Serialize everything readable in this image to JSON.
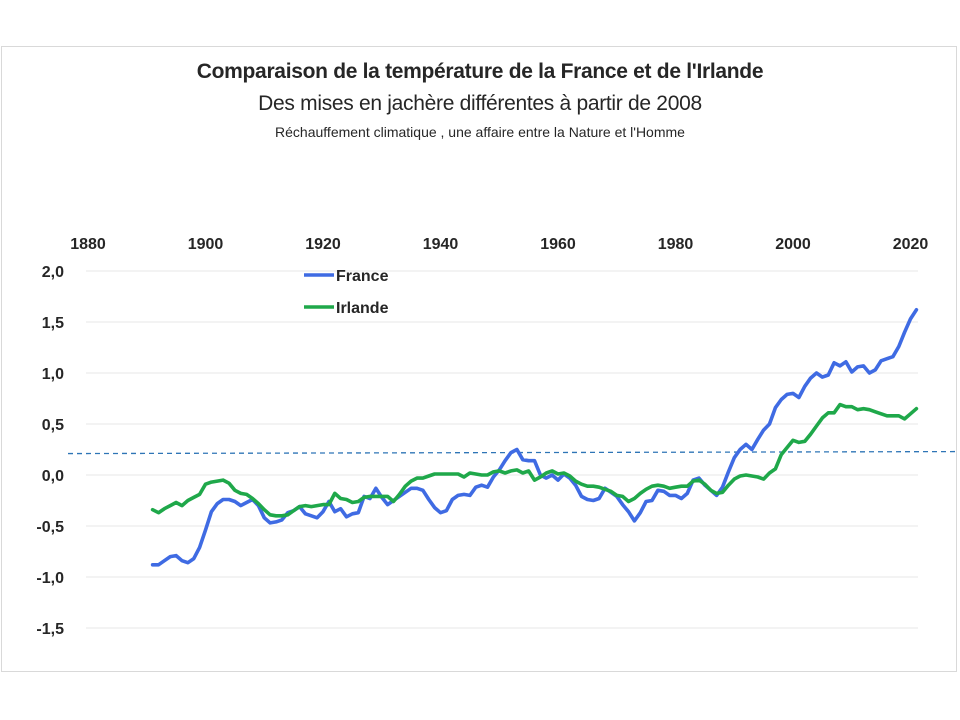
{
  "chart_data": {
    "type": "line",
    "title": "Comparaison de la température de la France et de l'Irlande",
    "subtitle": "Des mises en jachère différentes à partir de 2008",
    "subsubtitle": "Réchauffement  climatique , une affaire entre la Nature et l'Homme",
    "xlabel": "",
    "ylabel": "",
    "xlim": [
      1880,
      2020
    ],
    "ylim": [
      -1.5,
      2.0
    ],
    "x_ticks": [
      1880,
      1900,
      1920,
      1940,
      1960,
      1980,
      2000,
      2020
    ],
    "x_tick_labels": [
      "1880",
      "1900",
      "1920",
      "1940",
      "1960",
      "1980",
      "2000",
      "2020"
    ],
    "x_axis_position": "top",
    "y_ticks": [
      2.0,
      1.5,
      1.0,
      0.5,
      0.0,
      -0.5,
      -1.0,
      -1.5
    ],
    "y_tick_labels": [
      "2,0",
      "1,5",
      "1,0",
      "0,5",
      "0,0",
      "-0,5",
      "-1,0",
      "-1,5"
    ],
    "grid": "horizontal",
    "legend_position": "top-left-inside",
    "reference_line": {
      "value": 0.21,
      "style": "dashed",
      "color": "#2E75B6"
    },
    "x": [
      1891,
      1892,
      1893,
      1894,
      1895,
      1896,
      1897,
      1898,
      1899,
      1900,
      1901,
      1902,
      1903,
      1904,
      1905,
      1906,
      1907,
      1908,
      1909,
      1910,
      1911,
      1912,
      1913,
      1914,
      1915,
      1916,
      1917,
      1918,
      1919,
      1920,
      1921,
      1922,
      1923,
      1924,
      1925,
      1926,
      1927,
      1928,
      1929,
      1930,
      1931,
      1932,
      1933,
      1934,
      1935,
      1936,
      1937,
      1938,
      1939,
      1940,
      1941,
      1942,
      1943,
      1944,
      1945,
      1946,
      1947,
      1948,
      1949,
      1950,
      1951,
      1952,
      1953,
      1954,
      1955,
      1956,
      1957,
      1958,
      1959,
      1960,
      1961,
      1962,
      1963,
      1964,
      1965,
      1966,
      1967,
      1968,
      1969,
      1970,
      1971,
      1972,
      1973,
      1974,
      1975,
      1976,
      1977,
      1978,
      1979,
      1980,
      1981,
      1982,
      1983,
      1984,
      1985,
      1986,
      1987,
      1988,
      1989,
      1990,
      1991,
      1992,
      1993,
      1994,
      1995,
      1996,
      1997,
      1998,
      1999,
      2000,
      2001,
      2002,
      2003,
      2004,
      2005,
      2006,
      2007,
      2008,
      2009,
      2010,
      2011,
      2012,
      2013,
      2014,
      2015,
      2016,
      2017,
      2018,
      2019,
      2020,
      2021
    ],
    "series": [
      {
        "name": "France",
        "color": "#3F6BE3",
        "values": [
          -0.88,
          -0.88,
          -0.84,
          -0.8,
          -0.79,
          -0.84,
          -0.86,
          -0.82,
          -0.71,
          -0.54,
          -0.36,
          -0.28,
          -0.24,
          -0.24,
          -0.26,
          -0.3,
          -0.27,
          -0.24,
          -0.3,
          -0.42,
          -0.47,
          -0.46,
          -0.44,
          -0.37,
          -0.35,
          -0.31,
          -0.38,
          -0.4,
          -0.42,
          -0.36,
          -0.26,
          -0.36,
          -0.33,
          -0.41,
          -0.38,
          -0.37,
          -0.21,
          -0.23,
          -0.13,
          -0.22,
          -0.29,
          -0.25,
          -0.21,
          -0.17,
          -0.13,
          -0.13,
          -0.15,
          -0.24,
          -0.32,
          -0.37,
          -0.35,
          -0.24,
          -0.2,
          -0.19,
          -0.2,
          -0.12,
          -0.1,
          -0.12,
          -0.02,
          0.05,
          0.14,
          0.22,
          0.25,
          0.15,
          0.14,
          0.14,
          0.0,
          -0.03,
          0.0,
          -0.05,
          0.01,
          -0.03,
          -0.1,
          -0.21,
          -0.24,
          -0.25,
          -0.23,
          -0.13,
          -0.17,
          -0.21,
          -0.29,
          -0.36,
          -0.45,
          -0.37,
          -0.26,
          -0.25,
          -0.15,
          -0.16,
          -0.2,
          -0.2,
          -0.23,
          -0.18,
          -0.05,
          -0.03,
          -0.1,
          -0.15,
          -0.2,
          -0.12,
          0.03,
          0.17,
          0.25,
          0.3,
          0.25,
          0.35,
          0.44,
          0.5,
          0.66,
          0.74,
          0.79,
          0.8,
          0.76,
          0.87,
          0.95,
          1.0,
          0.96,
          0.98,
          1.1,
          1.07,
          1.11,
          1.01,
          1.06,
          1.07,
          1.0,
          1.03,
          1.12,
          1.14,
          1.16,
          1.26,
          1.4,
          1.53,
          1.62
        ]
      },
      {
        "name": "Irlande",
        "color": "#1FA84A",
        "values": [
          -0.34,
          -0.37,
          -0.33,
          -0.3,
          -0.27,
          -0.3,
          -0.25,
          -0.22,
          -0.19,
          -0.09,
          -0.07,
          -0.06,
          -0.05,
          -0.08,
          -0.15,
          -0.18,
          -0.19,
          -0.23,
          -0.28,
          -0.34,
          -0.39,
          -0.4,
          -0.4,
          -0.39,
          -0.35,
          -0.31,
          -0.3,
          -0.31,
          -0.3,
          -0.29,
          -0.29,
          -0.18,
          -0.23,
          -0.24,
          -0.27,
          -0.26,
          -0.22,
          -0.21,
          -0.21,
          -0.21,
          -0.21,
          -0.26,
          -0.19,
          -0.11,
          -0.06,
          -0.03,
          -0.03,
          -0.01,
          0.01,
          0.01,
          0.01,
          0.01,
          0.01,
          -0.02,
          0.02,
          0.01,
          0.0,
          0.0,
          0.03,
          0.04,
          0.02,
          0.04,
          0.05,
          0.02,
          0.04,
          -0.05,
          -0.02,
          0.02,
          0.04,
          0.01,
          0.02,
          -0.01,
          -0.06,
          -0.09,
          -0.11,
          -0.11,
          -0.12,
          -0.14,
          -0.16,
          -0.2,
          -0.21,
          -0.26,
          -0.23,
          -0.18,
          -0.14,
          -0.11,
          -0.1,
          -0.11,
          -0.13,
          -0.12,
          -0.11,
          -0.11,
          -0.06,
          -0.05,
          -0.09,
          -0.15,
          -0.18,
          -0.17,
          -0.1,
          -0.04,
          -0.01,
          -0.0,
          -0.01,
          -0.02,
          -0.04,
          0.02,
          0.06,
          0.2,
          0.27,
          0.34,
          0.32,
          0.33,
          0.4,
          0.48,
          0.56,
          0.61,
          0.61,
          0.69,
          0.67,
          0.67,
          0.64,
          0.65,
          0.64,
          0.62,
          0.6,
          0.58,
          0.58,
          0.58,
          0.55,
          0.6,
          0.65
        ]
      }
    ]
  }
}
